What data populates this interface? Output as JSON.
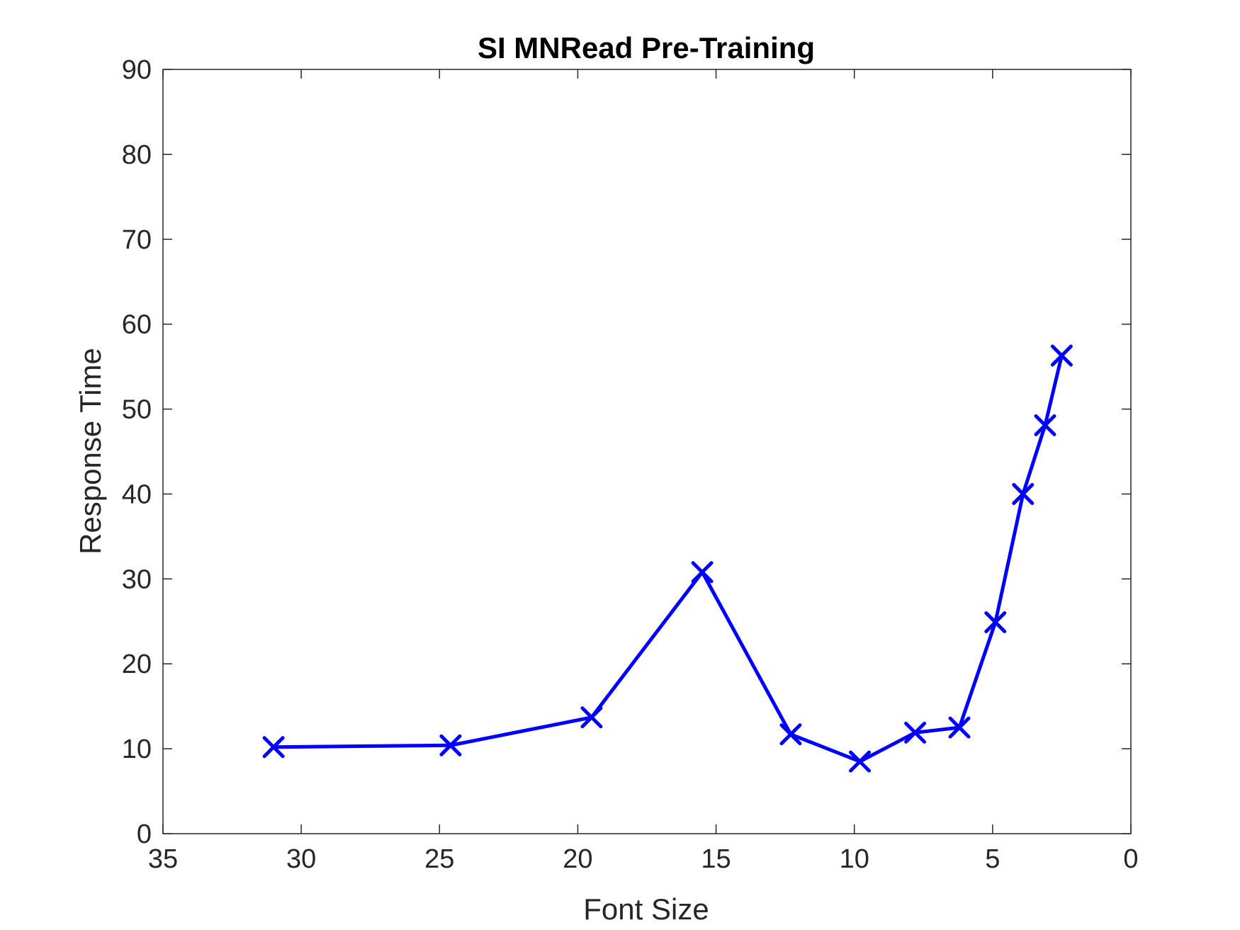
{
  "chart_data": {
    "type": "line",
    "title": "SI MNRead Pre-Training",
    "xlabel": "Font Size",
    "ylabel": "Response Time",
    "xlim": [
      35,
      0
    ],
    "ylim": [
      0,
      90
    ],
    "x_reversed": true,
    "xticks": [
      35,
      30,
      25,
      20,
      15,
      10,
      5,
      0
    ],
    "yticks": [
      0,
      10,
      20,
      30,
      40,
      50,
      60,
      70,
      80,
      90
    ],
    "grid": false,
    "box": true,
    "series": [
      {
        "color": "#0000ff",
        "marker": "x",
        "x": [
          31.0,
          24.6,
          19.5,
          15.5,
          12.3,
          9.8,
          7.8,
          6.2,
          4.9,
          3.9,
          3.1,
          2.5
        ],
        "y": [
          10.2,
          10.4,
          13.7,
          30.8,
          11.7,
          8.5,
          11.9,
          12.5,
          24.9,
          40.0,
          48.1,
          56.3
        ]
      }
    ]
  }
}
